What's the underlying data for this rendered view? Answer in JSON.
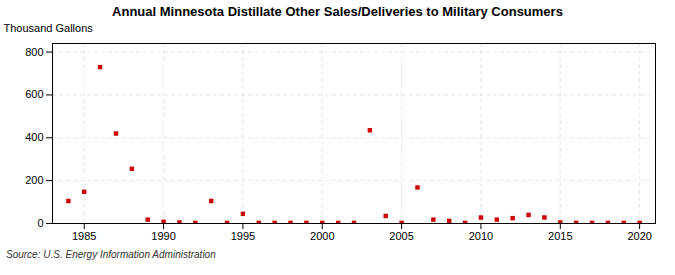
{
  "chart_data": {
    "type": "scatter",
    "title": "Annual Minnesota Distillate Other Sales/Deliveries to Military Consumers",
    "ylabel": "Thousand Gallons",
    "source": "Source: U.S. Energy Information Administration",
    "color": "#cc0000",
    "marker": "square",
    "grid": true,
    "xlim": [
      1983,
      2021
    ],
    "ylim": [
      0,
      840
    ],
    "xticks": [
      1985,
      1990,
      1995,
      2000,
      2005,
      2010,
      2015,
      2020
    ],
    "yticks": [
      0,
      200,
      400,
      600,
      800
    ],
    "x": [
      1984,
      1985,
      1986,
      1987,
      1988,
      1989,
      1990,
      1991,
      1992,
      1993,
      1994,
      1995,
      1996,
      1997,
      1998,
      1999,
      2000,
      2001,
      2002,
      2003,
      2004,
      2005,
      2006,
      2007,
      2008,
      2009,
      2010,
      2011,
      2012,
      2013,
      2014,
      2015,
      2016,
      2017,
      2018,
      2019,
      2020
    ],
    "values": [
      105,
      148,
      730,
      420,
      255,
      18,
      8,
      5,
      3,
      105,
      3,
      45,
      3,
      3,
      3,
      3,
      3,
      3,
      3,
      435,
      35,
      3,
      168,
      18,
      12,
      3,
      28,
      18,
      25,
      40,
      28,
      5,
      3,
      3,
      3,
      3,
      3
    ]
  }
}
